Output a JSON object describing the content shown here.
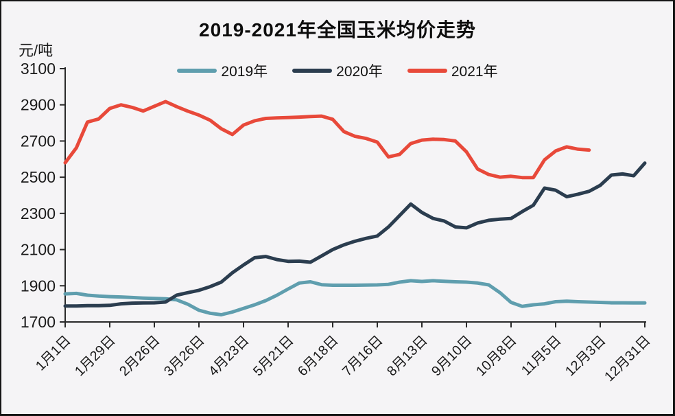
{
  "chart_data": {
    "type": "line",
    "title": "2019-2021年全国玉米均价走势",
    "ylabel": "元/吨",
    "xlabel": "",
    "ylim": [
      1700,
      3100
    ],
    "y_ticks": [
      3100,
      2900,
      2700,
      2500,
      2300,
      2100,
      1900,
      1700
    ],
    "x_tick_labels": [
      "1月1日",
      "1月29日",
      "2月26日",
      "3月26日",
      "4月23日",
      "5月21日",
      "6月18日",
      "7月16日",
      "8月13日",
      "9月10日",
      "10月8日",
      "11月5日",
      "12月3日",
      "12月31日"
    ],
    "x_tick_every_n_points": 4,
    "x_unit": "week",
    "grid": false,
    "legend_position": "top",
    "axis_color": "#2a2a2a",
    "text_color": "#1a1a1a",
    "background_color": "#f5f4f6",
    "series": [
      {
        "name": "2019年",
        "color": "#5f9eae",
        "values": [
          1855,
          1858,
          1848,
          1843,
          1840,
          1838,
          1835,
          1832,
          1830,
          1828,
          1822,
          1798,
          1765,
          1748,
          1740,
          1755,
          1775,
          1795,
          1818,
          1848,
          1882,
          1915,
          1922,
          1906,
          1903,
          1903,
          1903,
          1904,
          1905,
          1908,
          1920,
          1928,
          1924,
          1928,
          1925,
          1922,
          1920,
          1915,
          1905,
          1862,
          1808,
          1786,
          1795,
          1800,
          1812,
          1815,
          1812,
          1810,
          1808,
          1806,
          1806,
          1805,
          1805
        ]
      },
      {
        "name": "2020年",
        "color": "#2b3d4f",
        "values": [
          1788,
          1788,
          1790,
          1790,
          1792,
          1800,
          1804,
          1805,
          1806,
          1810,
          1848,
          1862,
          1875,
          1895,
          1920,
          1972,
          2015,
          2055,
          2062,
          2045,
          2035,
          2036,
          2030,
          2065,
          2100,
          2126,
          2146,
          2162,
          2175,
          2225,
          2288,
          2352,
          2305,
          2272,
          2258,
          2225,
          2220,
          2247,
          2262,
          2268,
          2272,
          2310,
          2345,
          2440,
          2428,
          2392,
          2406,
          2422,
          2455,
          2512,
          2518,
          2508,
          2578
        ]
      },
      {
        "name": "2021年",
        "color": "#e8493a",
        "values": [
          2580,
          2662,
          2805,
          2822,
          2880,
          2900,
          2886,
          2866,
          2892,
          2918,
          2890,
          2865,
          2843,
          2815,
          2768,
          2736,
          2788,
          2812,
          2825,
          2828,
          2830,
          2832,
          2835,
          2838,
          2820,
          2752,
          2726,
          2714,
          2694,
          2612,
          2626,
          2686,
          2705,
          2710,
          2708,
          2700,
          2640,
          2545,
          2515,
          2500,
          2505,
          2498,
          2498,
          2596,
          2645,
          2668,
          2655,
          2650
        ]
      }
    ]
  }
}
